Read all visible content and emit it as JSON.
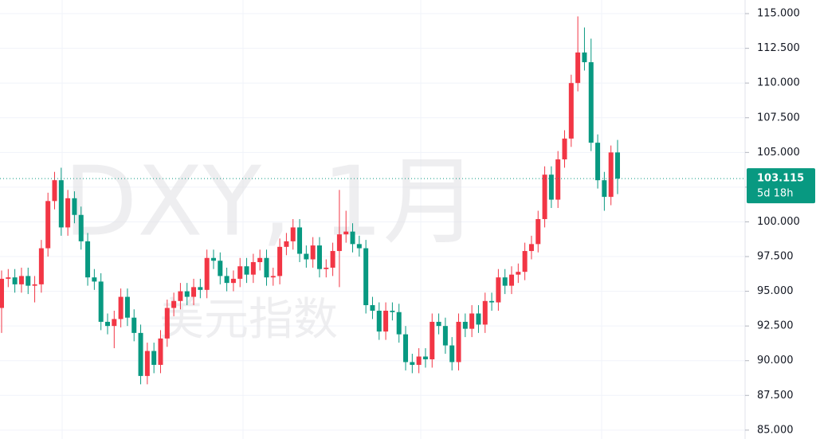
{
  "chart_data": {
    "type": "candlestick",
    "title": "DXY, 1月",
    "subtitle": "美元指数",
    "countdown": "5d 18h",
    "up_color": "#f23645",
    "down_color": "#089981",
    "grid": true,
    "ylim": [
      84.36,
      115.98
    ],
    "yticks": [
      {
        "value": 85,
        "label": "85.000"
      },
      {
        "value": 87.5,
        "label": "87.500"
      },
      {
        "value": 90,
        "label": "90.000"
      },
      {
        "value": 92.5,
        "label": "92.500"
      },
      {
        "value": 95,
        "label": "95.000"
      },
      {
        "value": 97.5,
        "label": "97.500"
      },
      {
        "value": 100,
        "label": "100.000"
      },
      {
        "value": 102.5,
        "label": "102.500"
      },
      {
        "value": 105,
        "label": "105.000"
      },
      {
        "value": 107.5,
        "label": "107.500"
      },
      {
        "value": 110,
        "label": "110.000"
      },
      {
        "value": 112.5,
        "label": "112.500"
      },
      {
        "value": 115,
        "label": "115.000"
      }
    ],
    "open": [
      93.8,
      95.9,
      96.0,
      95.5,
      96.1,
      95.4,
      95.5,
      98.1,
      101.5,
      103.0,
      99.6,
      101.7,
      100.5,
      98.6,
      96.0,
      95.7,
      92.8,
      92.5,
      93.0,
      94.6,
      93.1,
      92.0,
      88.9,
      90.7,
      89.7,
      91.6,
      93.8,
      94.3,
      95.0,
      94.6,
      95.3,
      95.1,
      97.4,
      97.2,
      96.1,
      95.6,
      95.9,
      96.8,
      96.2,
      97.1,
      97.4,
      96.0,
      96.1,
      98.2,
      98.6,
      99.6,
      97.7,
      97.3,
      98.3,
      96.6,
      96.7,
      97.9,
      99.1,
      99.3,
      98.4,
      98.1,
      94.0,
      93.6,
      92.1,
      93.6,
      93.5,
      91.9,
      89.9,
      89.7,
      90.3,
      90.1,
      92.8,
      92.5,
      91.1,
      89.9,
      92.8,
      92.3,
      93.4,
      92.6,
      94.3,
      94.2,
      96.0,
      95.4,
      96.2,
      96.4,
      97.9,
      98.4,
      100.2,
      103.4,
      101.6,
      104.5,
      106.0,
      110.0,
      112.2,
      111.5,
      105.7,
      103.0,
      101.8,
      105.0
    ],
    "high": [
      96.5,
      96.6,
      96.6,
      96.7,
      96.7,
      96.1,
      98.7,
      102.1,
      103.6,
      103.9,
      102.3,
      102.2,
      101.1,
      99.2,
      96.6,
      96.3,
      93.4,
      93.6,
      95.2,
      95.2,
      93.7,
      92.6,
      91.3,
      91.3,
      92.2,
      94.4,
      94.9,
      95.6,
      95.6,
      95.9,
      95.9,
      98.0,
      98.0,
      97.8,
      96.7,
      96.5,
      97.4,
      97.4,
      97.7,
      98.0,
      98.0,
      96.7,
      98.8,
      99.2,
      100.2,
      100.2,
      98.3,
      98.9,
      98.9,
      97.3,
      98.5,
      102.3,
      100.8,
      99.9,
      99.0,
      98.7,
      94.6,
      94.2,
      94.2,
      94.2,
      94.1,
      92.5,
      90.5,
      90.9,
      90.9,
      93.4,
      93.4,
      93.1,
      91.7,
      93.4,
      93.4,
      94.0,
      94.0,
      94.9,
      94.9,
      96.6,
      96.6,
      96.8,
      97.0,
      98.5,
      99.0,
      100.8,
      104.0,
      104.0,
      105.1,
      106.6,
      110.6,
      114.8,
      114.0,
      113.2,
      106.3,
      103.6,
      105.5,
      105.9
    ],
    "low": [
      92.0,
      95.3,
      94.9,
      94.9,
      94.8,
      94.2,
      94.9,
      97.5,
      100.9,
      99.0,
      99.0,
      99.9,
      98.0,
      95.4,
      95.1,
      92.2,
      91.9,
      90.9,
      92.4,
      92.5,
      91.4,
      88.3,
      88.3,
      89.1,
      89.1,
      91.0,
      93.2,
      93.7,
      94.0,
      94.0,
      94.5,
      94.5,
      96.6,
      95.5,
      95.0,
      95.0,
      95.3,
      95.6,
      95.6,
      96.5,
      95.4,
      95.4,
      95.5,
      97.6,
      98.0,
      97.1,
      96.7,
      96.7,
      96.0,
      96.0,
      96.1,
      95.3,
      98.5,
      97.8,
      97.5,
      93.4,
      93.0,
      91.5,
      91.5,
      92.9,
      91.3,
      89.3,
      89.1,
      89.1,
      89.5,
      89.5,
      91.9,
      90.5,
      89.3,
      89.3,
      91.7,
      91.7,
      92.0,
      92.0,
      93.6,
      93.6,
      94.8,
      94.8,
      95.6,
      95.8,
      97.3,
      97.8,
      99.6,
      101.0,
      101.0,
      103.9,
      105.4,
      109.4,
      110.9,
      105.1,
      102.4,
      100.8,
      101.2,
      102.0
    ],
    "close": [
      95.9,
      96.0,
      95.5,
      96.1,
      95.4,
      95.5,
      98.1,
      101.5,
      103.0,
      99.6,
      101.7,
      100.5,
      98.6,
      96.0,
      95.7,
      92.8,
      92.5,
      93.0,
      94.6,
      93.1,
      92.0,
      88.9,
      90.7,
      89.7,
      91.6,
      93.8,
      94.3,
      95.0,
      94.6,
      95.3,
      95.1,
      97.4,
      97.2,
      96.1,
      95.6,
      95.9,
      96.8,
      96.2,
      97.1,
      97.4,
      96.0,
      96.1,
      98.2,
      98.6,
      99.6,
      97.7,
      97.3,
      98.3,
      96.6,
      96.7,
      97.9,
      99.1,
      99.3,
      98.4,
      98.1,
      94.0,
      93.6,
      92.1,
      93.6,
      93.5,
      91.9,
      89.9,
      89.7,
      90.3,
      90.1,
      92.8,
      92.5,
      91.1,
      89.9,
      92.8,
      92.3,
      93.4,
      92.6,
      94.3,
      94.2,
      96.0,
      95.4,
      96.2,
      96.4,
      97.9,
      98.4,
      100.2,
      103.4,
      101.6,
      104.5,
      106.0,
      110.0,
      112.2,
      111.5,
      105.7,
      103.0,
      101.8,
      105.0,
      103.115
    ]
  }
}
